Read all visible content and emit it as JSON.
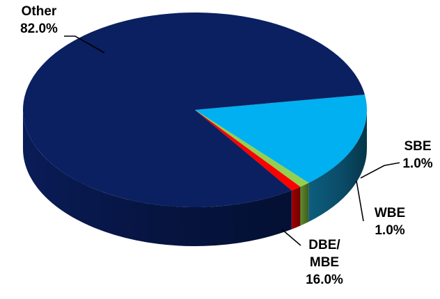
{
  "chart_data": {
    "type": "pie",
    "style": "3d",
    "title": "",
    "categories": [
      "Other",
      "DBE/ MBE",
      "WBE",
      "SBE"
    ],
    "values": [
      82.0,
      16.0,
      1.0,
      1.0
    ],
    "colors": {
      "Other": "#0B2061",
      "DBE/ MBE": "#00B0F0",
      "WBE": "#92D050",
      "SBE": "#FF0000"
    },
    "labels": [
      {
        "lines": [
          "Other",
          "82.0%"
        ]
      },
      {
        "lines": [
          "DBE/",
          "MBE",
          "16.0%"
        ]
      },
      {
        "lines": [
          "WBE",
          "1.0%"
        ]
      },
      {
        "lines": [
          "SBE",
          "1.0%"
        ]
      }
    ],
    "legend": "none"
  }
}
